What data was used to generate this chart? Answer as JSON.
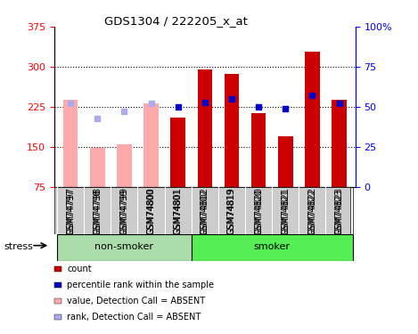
{
  "title": "GDS1304 / 222205_x_at",
  "samples": [
    "GSM74797",
    "GSM74798",
    "GSM74799",
    "GSM74800",
    "GSM74801",
    "GSM74802",
    "GSM74819",
    "GSM74820",
    "GSM74821",
    "GSM74822",
    "GSM74823"
  ],
  "absent": [
    true,
    true,
    true,
    true,
    false,
    false,
    false,
    false,
    false,
    false,
    false
  ],
  "count_values": [
    null,
    null,
    null,
    null,
    205,
    295,
    287,
    213,
    170,
    328,
    238
  ],
  "absent_values": [
    238,
    148,
    155,
    232,
    null,
    null,
    null,
    null,
    null,
    null,
    null
  ],
  "rank_present_pct": [
    null,
    null,
    null,
    null,
    50,
    53,
    55,
    50,
    49,
    57,
    52
  ],
  "rank_absent_pct": [
    52,
    43,
    47,
    52,
    null,
    null,
    null,
    null,
    null,
    null,
    null
  ],
  "ylim_left": [
    75,
    375
  ],
  "ylim_right": [
    0,
    100
  ],
  "yticks_left": [
    75,
    150,
    225,
    300,
    375
  ],
  "yticks_right": [
    0,
    25,
    50,
    75,
    100
  ],
  "ytick_labels_right": [
    "0",
    "25",
    "50",
    "75",
    "100%"
  ],
  "hlines": [
    150,
    225,
    300
  ],
  "color_count": "#cc0000",
  "color_rank_present": "#0000cc",
  "color_absent_value": "#ffaaaa",
  "color_absent_rank": "#aaaaee",
  "color_nonsmoker_bg": "#aaeea a",
  "color_smoker_bg": "#55ee55",
  "nonsmoker_bg": "#bbeeaa",
  "nonsmoker_count": 5,
  "smoker_count": 6,
  "group_label_nonsmoker": "non-smoker",
  "group_label_smoker": "smoker",
  "stress_label": "stress",
  "legend_items": [
    {
      "color": "#cc0000",
      "label": "count"
    },
    {
      "color": "#0000cc",
      "label": "percentile rank within the sample"
    },
    {
      "color": "#ffaaaa",
      "label": "value, Detection Call = ABSENT"
    },
    {
      "color": "#aaaaee",
      "label": "rank, Detection Call = ABSENT"
    }
  ]
}
